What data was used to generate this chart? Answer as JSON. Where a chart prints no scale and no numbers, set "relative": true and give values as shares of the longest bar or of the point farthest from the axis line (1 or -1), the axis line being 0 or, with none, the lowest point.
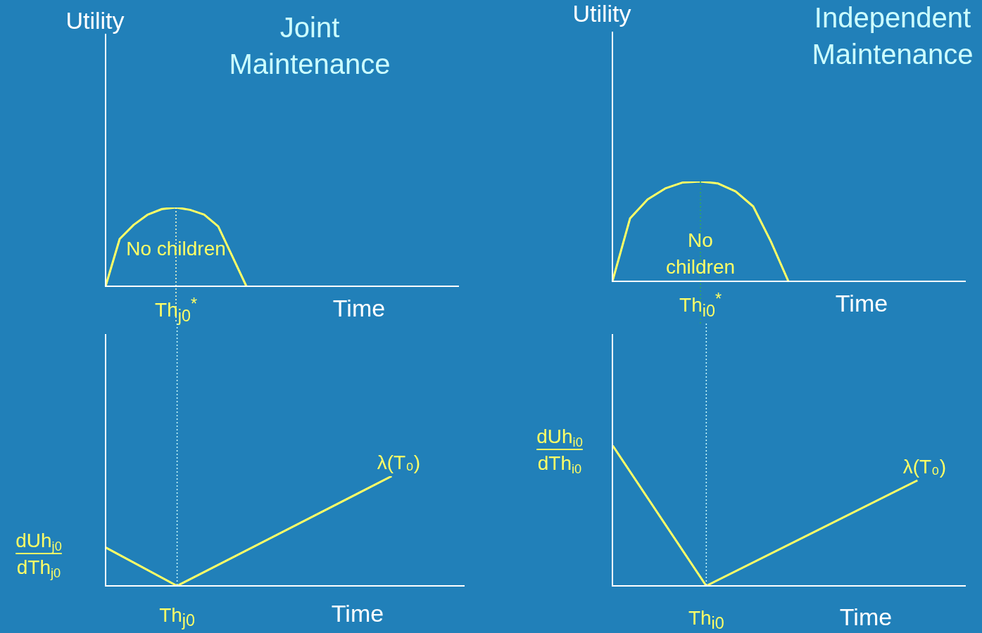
{
  "chart_data": [
    {
      "type": "line",
      "relative": true,
      "title": "Joint Maintenance",
      "ylabel": "Utility",
      "xlabel": "Time",
      "categories": [
        null,
        null,
        null,
        null,
        null,
        null,
        null,
        null,
        null,
        null,
        null,
        null,
        null,
        null,
        null,
        null,
        null,
        null,
        null,
        null,
        null,
        null,
        null,
        null,
        null,
        null
      ],
      "series": [
        {
          "color": "#ffff66",
          "values": [
            0,
            0.6,
            0.78,
            0.91,
            0.98,
            1,
            0.97,
            0.91,
            0.76,
            0.38,
            0,
            null,
            null,
            null,
            null,
            null,
            null,
            null,
            null,
            null,
            null,
            null,
            null,
            null,
            null,
            null
          ]
        }
      ],
      "annotations": [
        "No children",
        "Th$_{j0}$$^{*}$"
      ]
    },
    {
      "type": "line",
      "relative": true,
      "title": "Independent Maintenance",
      "ylabel": "Utility",
      "xlabel": "Time",
      "categories": [
        null,
        null,
        null,
        null,
        null,
        null,
        null,
        null,
        null,
        null,
        null,
        null,
        null,
        null,
        null,
        null,
        null,
        null,
        null,
        null,
        null
      ],
      "series": [
        {
          "color": "#ffff66",
          "values": [
            0,
            0.63,
            0.82,
            0.93,
            0.99,
            1,
            0.98,
            0.9,
            0.75,
            0.4,
            0,
            null,
            null,
            null,
            null,
            null,
            null,
            null,
            null,
            null,
            null
          ]
        }
      ],
      "annotations": [
        "No children",
        "Th$_{i0}$$^{*}$"
      ]
    },
    {
      "type": "line",
      "relative": true,
      "ylabel": "dUh$_{j0}$\ndTh$_{j0}$",
      "xlabel": "Time",
      "categories": [
        null,
        null,
        null,
        null,
        null,
        null
      ],
      "series": [
        {
          "name": "λ(T₀)",
          "color": "#ffff66",
          "values": [
            0.35,
            0,
            null,
            null,
            1,
            null
          ]
        }
      ],
      "annotations": [
        "Th$_{j0}$"
      ]
    },
    {
      "type": "line",
      "relative": true,
      "ylabel": "dUh$_{i0}$\ndTh$_{i0}$",
      "xlabel": "Time",
      "categories": [
        null,
        null,
        null,
        null,
        null,
        null,
        null,
        null,
        null,
        null,
        null,
        null,
        null,
        null,
        null,
        null
      ],
      "series": [
        {
          "name": "λ(T₀)",
          "color": "#ffff66",
          "values": [
            1,
            null,
            null,
            null,
            0,
            null,
            null,
            null,
            null,
            null,
            null,
            null,
            null,
            0.75,
            null,
            null
          ]
        }
      ],
      "annotations": [
        "Th$_{i0}$"
      ]
    }
  ]
}
